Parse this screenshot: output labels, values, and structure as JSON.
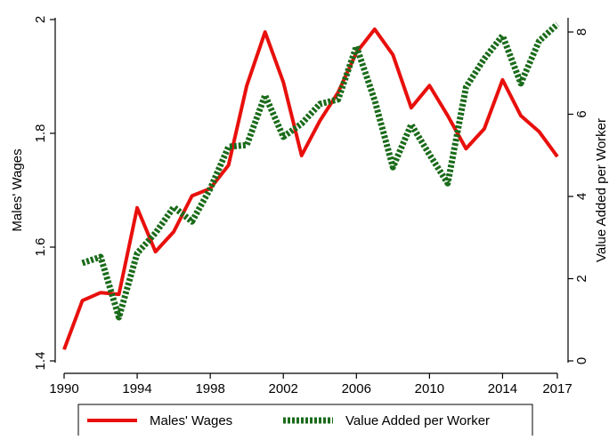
{
  "chart_data": {
    "type": "line",
    "x": [
      1990,
      1991,
      1992,
      1993,
      1994,
      1995,
      1996,
      1997,
      1998,
      1999,
      2000,
      2001,
      2002,
      2003,
      2004,
      2005,
      2006,
      2007,
      2008,
      2009,
      2010,
      2011,
      2012,
      2013,
      2014,
      2015,
      2016,
      2017
    ],
    "xlim": [
      1990,
      2017
    ],
    "xticks": [
      1990,
      1994,
      1998,
      2002,
      2006,
      2010,
      2014,
      2017
    ],
    "ylabel": "Males' Wages",
    "ylim": [
      1.4,
      2
    ],
    "yticks": [
      1.4,
      1.6,
      1.8,
      2
    ],
    "y2label": "Value Added per Worker",
    "y2lim": [
      0,
      8
    ],
    "y2ticks": [
      0,
      2,
      4,
      6,
      8
    ],
    "legend": "bottom",
    "series": [
      {
        "name": "Males' Wages",
        "color": "#e8100c",
        "axis": "y",
        "values": [
          1.42,
          1.506,
          1.52,
          1.517,
          1.669,
          1.592,
          1.627,
          1.69,
          1.703,
          1.744,
          1.884,
          1.978,
          1.89,
          1.761,
          1.822,
          1.872,
          1.942,
          1.983,
          1.938,
          1.845,
          1.884,
          1.831,
          1.773,
          1.808,
          1.894,
          1.831,
          1.803,
          1.759
        ]
      },
      {
        "name": "Value Added per Worker",
        "color": "#1a6b1a",
        "axis": "y2",
        "values": [
          null,
          2.38,
          2.53,
          1.06,
          2.62,
          3.11,
          3.74,
          3.39,
          4.19,
          5.21,
          5.25,
          6.46,
          5.45,
          5.77,
          6.25,
          6.36,
          7.65,
          6.34,
          4.71,
          5.75,
          5.02,
          4.32,
          6.66,
          7.35,
          7.91,
          6.75,
          7.78,
          8.19
        ]
      }
    ]
  }
}
